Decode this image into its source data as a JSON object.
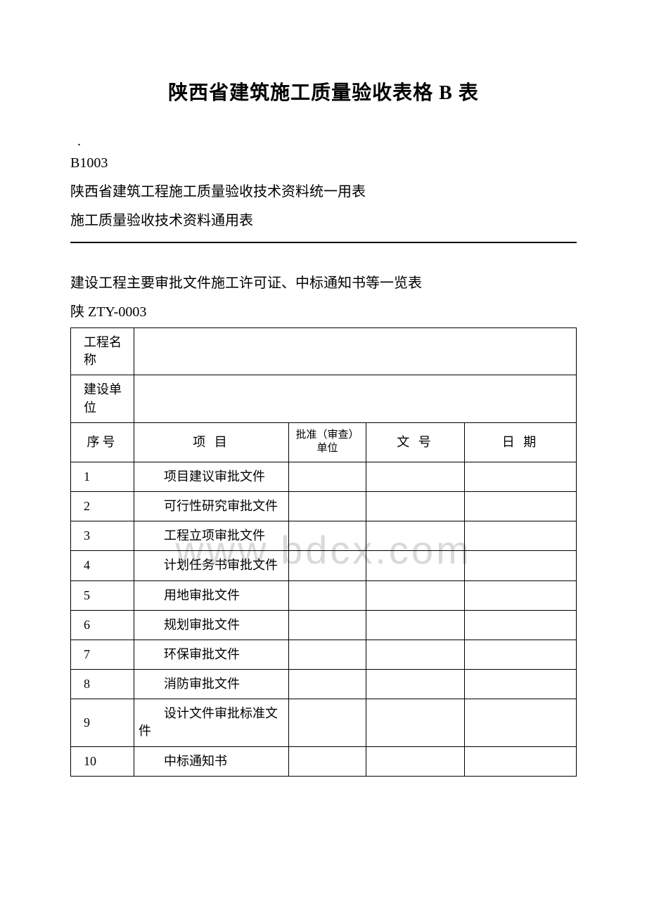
{
  "title": "陕西省建筑施工质量验收表格 B 表",
  "dot": ".",
  "code": "B1003",
  "subtitle1": "陕西省建筑工程施工质量验收技术资料统一用表",
  "subtitle2": "施工质量验收技术资料通用表",
  "section_heading": "建设工程主要审批文件施工许可证、中标通知书等一览表",
  "form_code": "陕 ZTY-0003",
  "watermark": "www.bdcx.com",
  "labels": {
    "project_name": "工程名称",
    "construction_unit": "建设单位",
    "seq": "序号",
    "item": "项  目",
    "approval_unit": "批准（审查）单位",
    "doc_number": "文  号",
    "date": "日  期"
  },
  "project_name_value": "",
  "construction_unit_value": "",
  "rows": [
    {
      "seq": "1",
      "item": "项目建议审批文件",
      "unit": "",
      "docnum": "",
      "date": ""
    },
    {
      "seq": "2",
      "item": "可行性研究审批文件",
      "unit": "",
      "docnum": "",
      "date": ""
    },
    {
      "seq": "3",
      "item": "工程立项审批文件",
      "unit": "",
      "docnum": "",
      "date": ""
    },
    {
      "seq": "4",
      "item": "计划任务书审批文件",
      "unit": "",
      "docnum": "",
      "date": ""
    },
    {
      "seq": "5",
      "item": "用地审批文件",
      "unit": "",
      "docnum": "",
      "date": ""
    },
    {
      "seq": "6",
      "item": "规划审批文件",
      "unit": "",
      "docnum": "",
      "date": ""
    },
    {
      "seq": "7",
      "item": "环保审批文件",
      "unit": "",
      "docnum": "",
      "date": ""
    },
    {
      "seq": "8",
      "item": "消防审批文件",
      "unit": "",
      "docnum": "",
      "date": ""
    },
    {
      "seq": "9",
      "item": "设计文件审批标准文件",
      "unit": "",
      "docnum": "",
      "date": ""
    },
    {
      "seq": "10",
      "item": "中标通知书",
      "unit": "",
      "docnum": "",
      "date": ""
    }
  ]
}
